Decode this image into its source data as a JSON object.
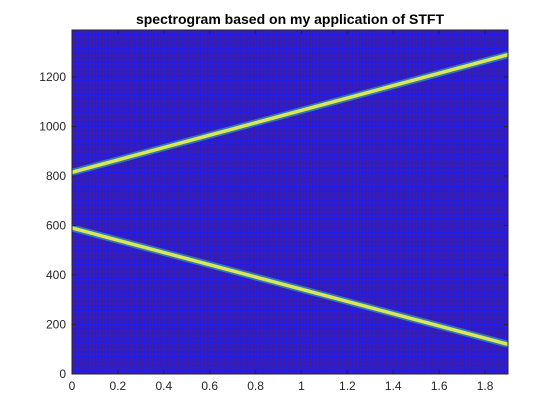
{
  "chart_data": {
    "type": "heatmap",
    "title": "spectrogram based on my application of STFT",
    "xlabel": "",
    "ylabel": "",
    "xlim": [
      0,
      1.9
    ],
    "ylim": [
      0,
      1390
    ],
    "xticks": [
      0,
      0.2,
      0.4,
      0.6,
      0.8,
      1,
      1.2,
      1.4,
      1.6,
      1.8
    ],
    "xtick_labels": [
      "0",
      "0.2",
      "0.4",
      "0.6",
      "0.8",
      "1",
      "1.2",
      "1.4",
      "1.6",
      "1.8"
    ],
    "yticks": [
      0,
      200,
      400,
      600,
      800,
      1000,
      1200
    ],
    "ytick_labels": [
      "0",
      "200",
      "400",
      "600",
      "800",
      "1000",
      "1200"
    ],
    "grid": true,
    "background_color": "#3b1fa8",
    "mesh_color": "#1a1aff",
    "series": [
      {
        "x": [
          0,
          1.9
        ],
        "y": [
          815,
          1290
        ],
        "color": "#d8e85a"
      },
      {
        "x": [
          0,
          1.9
        ],
        "y": [
          590,
          120
        ],
        "color": "#d8e85a"
      }
    ]
  }
}
